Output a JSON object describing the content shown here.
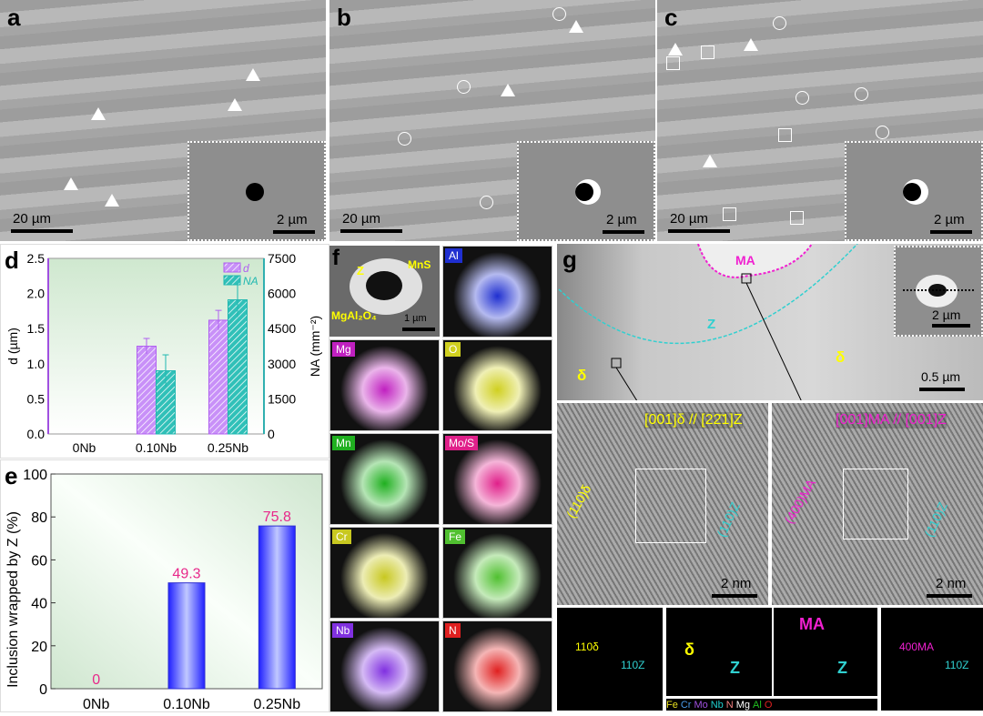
{
  "panels": {
    "a": {
      "label": "a",
      "scale_main": "20 µm",
      "scale_inset": "2 µm"
    },
    "b": {
      "label": "b",
      "scale_main": "20 µm",
      "scale_inset": "2 µm"
    },
    "c": {
      "label": "c",
      "scale_main": "20 µm",
      "scale_inset": "2 µm"
    },
    "f": {
      "label": "f",
      "z": "Z",
      "mns": "MnS",
      "mgal": "MgAl₂O₄",
      "scale": "1 µm",
      "maps": [
        {
          "el": "Al",
          "color": "#1f2fd0"
        },
        {
          "el": "Mg",
          "color": "#c020c0"
        },
        {
          "el": "O",
          "color": "#d0d020"
        },
        {
          "el": "Mn",
          "color": "#20b020"
        },
        {
          "el": "Mo/S",
          "color": "#e0208a"
        },
        {
          "el": "Cr",
          "color": "#c8c820"
        },
        {
          "el": "Fe",
          "color": "#50c030"
        },
        {
          "el": "Nb",
          "color": "#8030e0"
        },
        {
          "el": "N",
          "color": "#e02020"
        }
      ]
    },
    "g": {
      "label": "g",
      "ma": "MA",
      "z": "Z",
      "delta": "δ",
      "scale_main": "0.5 µm",
      "scale_inset": "2 µm",
      "hr1": {
        "zone": "[001]δ // [22̄1]Z",
        "plane1": "(110)δ",
        "plane2": "(110)Z",
        "scale": "2 nm"
      },
      "hr2": {
        "zone": "[001]MA // [001]Z",
        "plane1": "(400)MA",
        "plane2": "(110)Z",
        "scale": "2 nm"
      },
      "fft1": {
        "l1": "110δ",
        "l2": "110Z"
      },
      "model1": {
        "l1": "δ",
        "l2": "Z"
      },
      "model2": {
        "l1": "MA",
        "l2": "Z"
      },
      "fft2": {
        "l1": "400MA",
        "l2": "110Z"
      },
      "legend": [
        {
          "el": "Fe",
          "color": "#e8e020"
        },
        {
          "el": "Cr",
          "color": "#4a9ae8"
        },
        {
          "el": "Mo",
          "color": "#a050e0"
        },
        {
          "el": "Nb",
          "color": "#20d0d0"
        },
        {
          "el": "N",
          "color": "#f08080"
        },
        {
          "el": "Mg",
          "color": "#ffffff"
        },
        {
          "el": "Al",
          "color": "#20c020"
        },
        {
          "el": "O",
          "color": "#e02020"
        }
      ]
    }
  },
  "chart_data": [
    {
      "panel": "d",
      "type": "bar",
      "categories": [
        "0Nb",
        "0.10Nb",
        "0.25Nb"
      ],
      "ylabel": "d (µm)",
      "ylabel2": "NA (mm⁻²)",
      "ylim": [
        0,
        2.5
      ],
      "ylim2": [
        0,
        7500
      ],
      "yticks": [
        "0.0",
        "0.5",
        "1.0",
        "1.5",
        "2.0",
        "2.5"
      ],
      "yticks2": [
        "0",
        "1500",
        "3000",
        "4500",
        "6000",
        "7500"
      ],
      "legend_position": "top-right",
      "series": [
        {
          "name": "d",
          "axis": "left",
          "color": "#b060f0",
          "values": [
            null,
            1.25,
            1.62
          ],
          "errors": [
            null,
            0.11,
            0.14
          ]
        },
        {
          "name": "NA",
          "axis": "right",
          "color": "#20b8b0",
          "values": [
            null,
            2700,
            5730
          ],
          "errors": [
            null,
            680,
            740
          ]
        }
      ]
    },
    {
      "panel": "e",
      "type": "bar",
      "categories": [
        "0Nb",
        "0.10Nb",
        "0.25Nb"
      ],
      "ylabel": "Inclusion wrapped by Z (%)",
      "ylim": [
        0,
        100
      ],
      "yticks": [
        "0",
        "20",
        "40",
        "60",
        "80",
        "100"
      ],
      "values": [
        0,
        49.3,
        75.8
      ],
      "data_labels": [
        "0",
        "49.3",
        "75.8"
      ],
      "bar_color": "#3a3aff",
      "label_color": "#e8288a"
    }
  ]
}
